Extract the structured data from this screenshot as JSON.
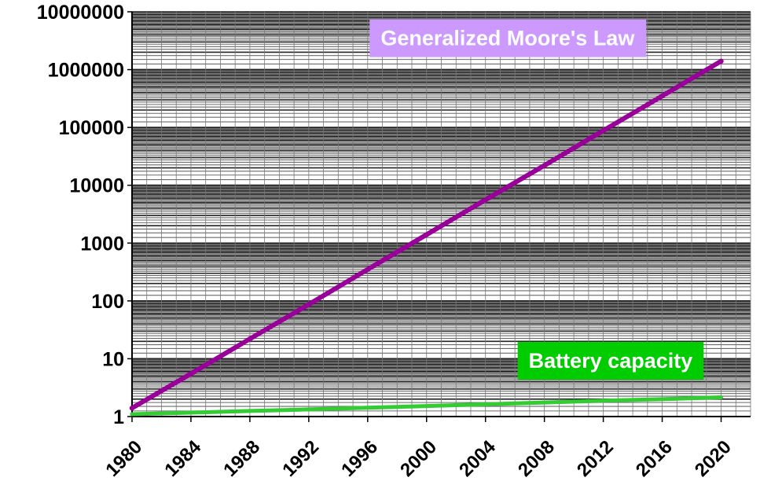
{
  "chart_data": {
    "type": "line",
    "title": "",
    "xlabel": "",
    "ylabel": "",
    "yscale": "log",
    "xlim": [
      1980,
      2022
    ],
    "ylim": [
      1,
      10000000
    ],
    "grid": true,
    "legend": "none",
    "y_ticks": [
      "1",
      "10",
      "100",
      "1000",
      "10000",
      "100000",
      "1000000",
      "10000000"
    ],
    "x_ticks": [
      "1980",
      "1984",
      "1988",
      "1992",
      "1996",
      "2000",
      "2004",
      "2008",
      "2012",
      "2016",
      "2020"
    ],
    "series": [
      {
        "color": "#990099",
        "x": [
          1980,
          1984,
          1988,
          1992,
          1996,
          2000,
          2004,
          2008,
          2012,
          2016,
          2020
        ],
        "y": [
          1.4,
          5.5,
          22,
          87,
          350,
          1400,
          5600,
          22000,
          88000,
          350000,
          1400000
        ]
      },
      {
        "color": "#33cc33",
        "x": [
          1980,
          1984,
          1988,
          1992,
          1996,
          2000,
          2004,
          2008,
          2012,
          2016,
          2020
        ],
        "y": [
          1.1,
          1.17,
          1.25,
          1.33,
          1.42,
          1.52,
          1.63,
          1.75,
          1.88,
          2.0,
          2.15
        ]
      }
    ],
    "annotations": [
      {
        "text": "Generalized Moore's Law",
        "color": "#cc99ff",
        "x": 2005.5,
        "y": 3600000
      },
      {
        "text": "Battery capacity",
        "color": "#00cc00",
        "x": 2012.5,
        "y": 9.5
      }
    ]
  }
}
